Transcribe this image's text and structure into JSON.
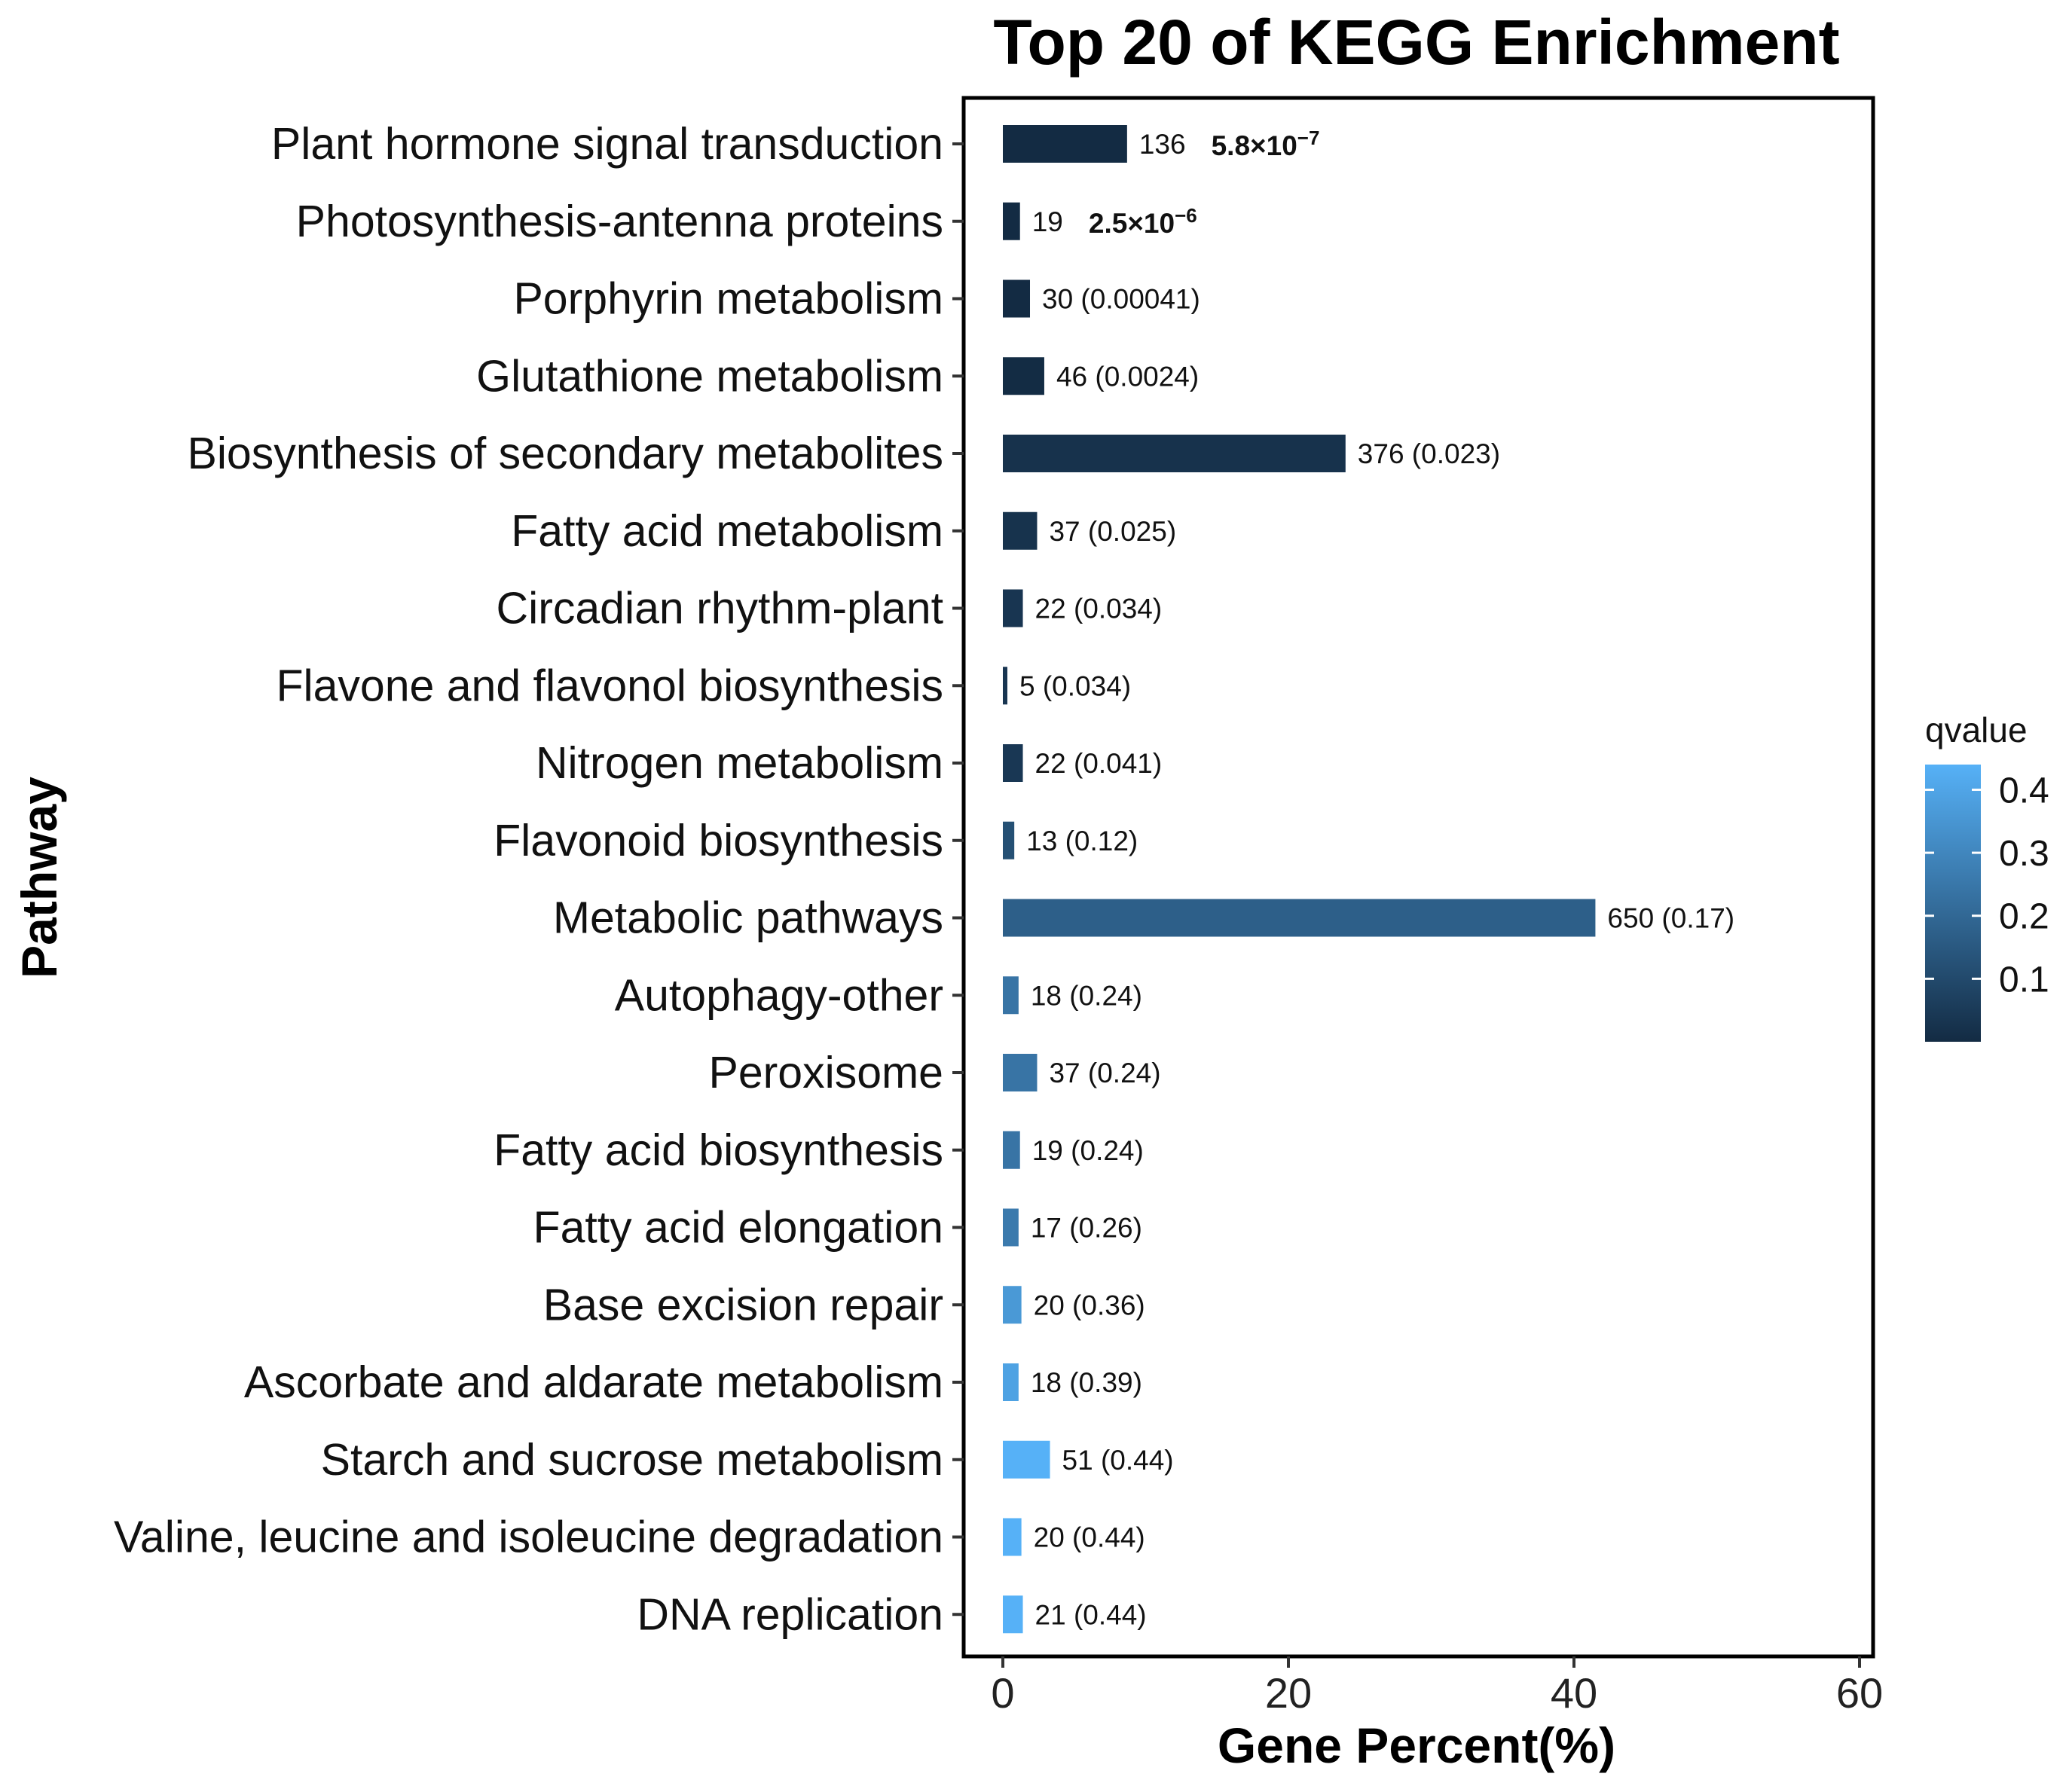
{
  "chart_data": {
    "type": "bar",
    "orientation": "horizontal",
    "title": "Top 20 of KEGG Enrichment",
    "xlabel": "Gene Percent(%)",
    "ylabel": "Pathway",
    "xlim": [
      0,
      60
    ],
    "xticks": [
      0,
      20,
      40,
      60
    ],
    "categories": [
      "Plant hormone signal transduction",
      "Photosynthesis-antenna proteins",
      "Porphyrin metabolism",
      "Glutathione metabolism",
      "Biosynthesis of secondary metabolites",
      "Fatty acid metabolism",
      "Circadian rhythm-plant",
      "Flavone and flavonol biosynthesis",
      "Nitrogen metabolism",
      "Flavonoid biosynthesis",
      "Metabolic pathways",
      "Autophagy-other",
      "Peroxisome",
      "Fatty acid biosynthesis",
      "Fatty acid elongation",
      "Base excision repair",
      "Ascorbate and aldarate metabolism",
      "Starch and sucrose metabolism",
      "Valine, leucine and isoleucine degradation",
      "DNA replication"
    ],
    "values": [
      8.7,
      1.2,
      1.9,
      2.9,
      24.0,
      2.4,
      1.4,
      0.3,
      1.4,
      0.8,
      41.5,
      1.1,
      2.4,
      1.2,
      1.1,
      1.3,
      1.1,
      3.3,
      1.3,
      1.4
    ],
    "gene_counts": [
      136,
      19,
      30,
      46,
      376,
      37,
      22,
      5,
      22,
      13,
      650,
      18,
      37,
      19,
      17,
      20,
      18,
      51,
      20,
      21
    ],
    "qvalues": [
      5.8e-07,
      2.5e-06,
      0.00041,
      0.0024,
      0.023,
      0.025,
      0.034,
      0.034,
      0.041,
      0.12,
      0.17,
      0.24,
      0.24,
      0.24,
      0.26,
      0.36,
      0.39,
      0.44,
      0.44,
      0.44
    ],
    "bar_labels": [
      {
        "count": "136",
        "q_mantissa": "5.8×10",
        "q_exp": "−7",
        "bold_q": true
      },
      {
        "count": "19",
        "q_mantissa": "2.5×10",
        "q_exp": "−6",
        "bold_q": true
      },
      {
        "text": "30 (0.00041)"
      },
      {
        "text": "46 (0.0024)"
      },
      {
        "text": "376 (0.023)"
      },
      {
        "text": "37 (0.025)"
      },
      {
        "text": "22 (0.034)"
      },
      {
        "text": "5 (0.034)"
      },
      {
        "text": "22 (0.041)"
      },
      {
        "text": "13 (0.12)"
      },
      {
        "text": "650 (0.17)"
      },
      {
        "text": "18 (0.24)"
      },
      {
        "text": "37 (0.24)"
      },
      {
        "text": "19 (0.24)"
      },
      {
        "text": "17 (0.26)"
      },
      {
        "text": "20 (0.36)"
      },
      {
        "text": "18 (0.39)"
      },
      {
        "text": "51 (0.44)"
      },
      {
        "text": "20 (0.44)"
      },
      {
        "text": "21 (0.44)"
      }
    ],
    "legend": {
      "title": "qvalue",
      "position": "right",
      "range": [
        0,
        0.44
      ],
      "ticks": [
        0.1,
        0.2,
        0.3,
        0.4
      ],
      "tick_labels": [
        "0.1",
        "0.2",
        "0.3",
        "0.4"
      ],
      "color_low": "#132B43",
      "color_high": "#56B1F7"
    },
    "grid": false
  }
}
